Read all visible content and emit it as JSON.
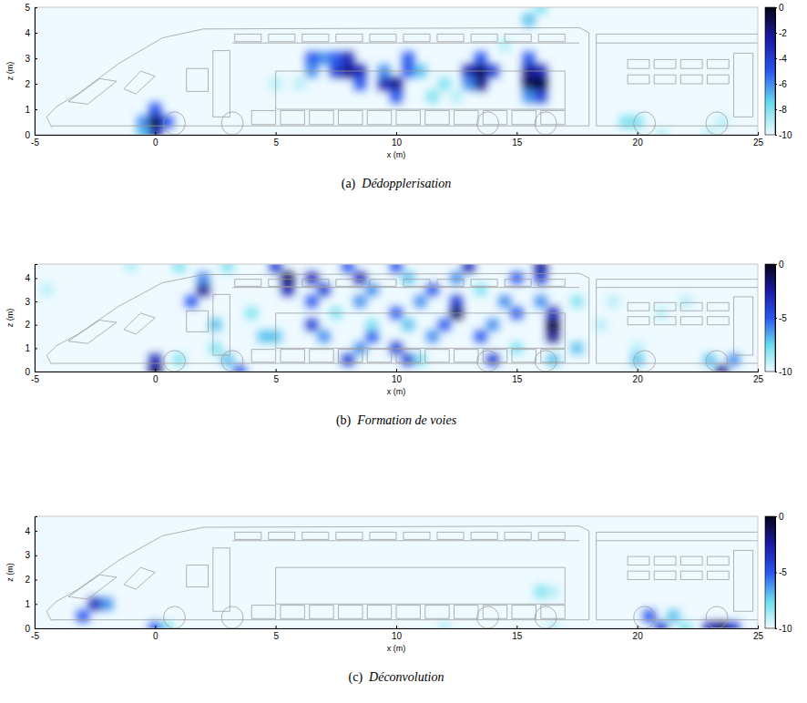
{
  "chart_data": [
    {
      "type": "heatmap",
      "panel": "(a)",
      "title": "Dédopplerisation",
      "xlabel": "x (m)",
      "ylabel": "z (m)",
      "xlim": [
        -5,
        25
      ],
      "xticks": [
        -5,
        0,
        5,
        10,
        15,
        20,
        25
      ],
      "ylim": [
        0,
        5
      ],
      "yticks": [
        0,
        1,
        2,
        3,
        4,
        5
      ],
      "colorbar": {
        "range": [
          -10,
          0
        ],
        "ticks": [
          0,
          -2,
          -4,
          -6,
          -8,
          -10
        ]
      },
      "cells": [
        [
          -0.5,
          0.5,
          -6
        ],
        [
          0,
          0.5,
          0
        ],
        [
          0,
          0,
          -3
        ],
        [
          0,
          1,
          -5
        ],
        [
          0.5,
          0.5,
          -5
        ],
        [
          -0.5,
          0,
          -7
        ],
        [
          6.5,
          2.5,
          -6
        ],
        [
          6.5,
          3,
          -5
        ],
        [
          7,
          3,
          -6
        ],
        [
          7.5,
          2.5,
          -4
        ],
        [
          8,
          2.5,
          -2
        ],
        [
          8,
          3,
          -3
        ],
        [
          8.5,
          2.5,
          -3
        ],
        [
          8.5,
          2,
          -5
        ],
        [
          7.5,
          3,
          -5
        ],
        [
          9.5,
          2,
          -3
        ],
        [
          10,
          2,
          -2
        ],
        [
          10,
          1.5,
          -5
        ],
        [
          9.5,
          2.5,
          -6
        ],
        [
          10.5,
          2.5,
          -5
        ],
        [
          10.5,
          3,
          -5
        ],
        [
          11,
          2.5,
          -7
        ],
        [
          13,
          2.5,
          -3
        ],
        [
          13.5,
          2.5,
          -1
        ],
        [
          13.5,
          2,
          -2
        ],
        [
          14,
          2.5,
          -4
        ],
        [
          13.5,
          3,
          -5
        ],
        [
          13,
          2,
          -6
        ],
        [
          15.5,
          2,
          -1
        ],
        [
          16,
          2,
          0
        ],
        [
          15.5,
          2.5,
          -2
        ],
        [
          16,
          2.5,
          -3
        ],
        [
          16,
          1.5,
          -4
        ],
        [
          15.5,
          3,
          -5
        ],
        [
          15.5,
          1.5,
          -6
        ],
        [
          15.5,
          4.5,
          -7
        ],
        [
          16,
          5,
          -8
        ],
        [
          11.5,
          1.5,
          -8
        ],
        [
          12,
          2,
          -8
        ],
        [
          12.5,
          1.5,
          -9
        ],
        [
          19.5,
          0.5,
          -8
        ],
        [
          20,
          0.5,
          -8
        ],
        [
          21,
          0,
          -9
        ],
        [
          23,
          0,
          -9
        ],
        [
          23.5,
          0.5,
          -9
        ],
        [
          5,
          2,
          -9
        ],
        [
          6,
          2,
          -9
        ],
        [
          14.5,
          3.5,
          -9
        ]
      ]
    },
    {
      "type": "heatmap",
      "panel": "(b)",
      "title": "Formation de voies",
      "xlabel": "x (m)",
      "ylabel": "z (m)",
      "xlim": [
        -5,
        25
      ],
      "xticks": [
        -5,
        0,
        5,
        10,
        15,
        20,
        25
      ],
      "ylim": [
        0,
        4.6
      ],
      "yticks": [
        0,
        1,
        2,
        3,
        4
      ],
      "colorbar": {
        "range": [
          -10,
          0
        ],
        "ticks": [
          0,
          -5,
          -10
        ]
      },
      "cells": [
        [
          0,
          0,
          -1
        ],
        [
          0,
          0.5,
          -3
        ],
        [
          3.5,
          0,
          -5
        ],
        [
          3,
          0.5,
          -7
        ],
        [
          2,
          3.5,
          -2
        ],
        [
          1.5,
          3,
          -5
        ],
        [
          2,
          4,
          -6
        ],
        [
          2.5,
          2,
          -7
        ],
        [
          4.5,
          1.5,
          -7
        ],
        [
          4,
          2.5,
          -8
        ],
        [
          5,
          4.5,
          -4
        ],
        [
          5.5,
          4,
          -1
        ],
        [
          5.5,
          3.5,
          -3
        ],
        [
          6.5,
          4,
          -3
        ],
        [
          6.5,
          3,
          -5
        ],
        [
          7,
          3.5,
          -4
        ],
        [
          5,
          1.5,
          -7
        ],
        [
          6.5,
          2,
          -4
        ],
        [
          7,
          1.5,
          -6
        ],
        [
          8,
          4.5,
          -5
        ],
        [
          8.5,
          4,
          -3
        ],
        [
          8.5,
          3,
          -6
        ],
        [
          9,
          3.5,
          -6
        ],
        [
          10,
          4.5,
          -5
        ],
        [
          10.5,
          4,
          -7
        ],
        [
          8,
          0.5,
          -4
        ],
        [
          8.5,
          1,
          -6
        ],
        [
          9,
          1.5,
          -5
        ],
        [
          10,
          1,
          -4
        ],
        [
          10.5,
          0.5,
          -4
        ],
        [
          10,
          2.5,
          -5
        ],
        [
          10.5,
          2,
          -7
        ],
        [
          11,
          3,
          -6
        ],
        [
          11.5,
          3.5,
          -5
        ],
        [
          11.5,
          1.5,
          -6
        ],
        [
          12,
          2,
          -5
        ],
        [
          12.5,
          2.5,
          -1
        ],
        [
          12.5,
          3,
          -4
        ],
        [
          13,
          4.5,
          -3
        ],
        [
          12.5,
          4,
          -6
        ],
        [
          13.5,
          1.5,
          -5
        ],
        [
          14,
          2,
          -6
        ],
        [
          14,
          0.5,
          -4
        ],
        [
          14.5,
          3,
          -6
        ],
        [
          15,
          2.5,
          -5
        ],
        [
          15,
          4,
          -5
        ],
        [
          16,
          4.5,
          -2
        ],
        [
          16,
          4,
          -4
        ],
        [
          16.5,
          2,
          0
        ],
        [
          16.5,
          1.5,
          -2
        ],
        [
          16.5,
          2.5,
          -3
        ],
        [
          16,
          3,
          -6
        ],
        [
          16.5,
          0.5,
          -7
        ],
        [
          17.5,
          3,
          -8
        ],
        [
          17.5,
          1,
          -7
        ],
        [
          18.5,
          2,
          -9
        ],
        [
          19,
          3,
          -9
        ],
        [
          20,
          1,
          -9
        ],
        [
          20,
          0.5,
          -7
        ],
        [
          21,
          2.5,
          -9
        ],
        [
          22,
          3,
          -9
        ],
        [
          23.5,
          0,
          -2
        ],
        [
          23,
          0.5,
          -7
        ],
        [
          24,
          0.5,
          -6
        ],
        [
          -4.5,
          3.5,
          -9
        ],
        [
          -1,
          4.5,
          -9
        ],
        [
          1,
          4.5,
          -8
        ],
        [
          3,
          4.5,
          -8
        ],
        [
          1,
          0.5,
          -8
        ],
        [
          2.5,
          1,
          -8
        ],
        [
          7.5,
          2.5,
          -8
        ],
        [
          9,
          2,
          -8
        ],
        [
          13.5,
          3.5,
          -8
        ],
        [
          11,
          0.5,
          -8
        ],
        [
          15,
          1,
          -8
        ]
      ]
    },
    {
      "type": "heatmap",
      "panel": "(c)",
      "title": "Déconvolution",
      "xlabel": "x (m)",
      "ylabel": "z (m)",
      "xlim": [
        -5,
        25
      ],
      "xticks": [
        -5,
        0,
        5,
        10,
        15,
        20,
        25
      ],
      "ylim": [
        0,
        4.6
      ],
      "yticks": [
        0,
        1,
        2,
        3,
        4
      ],
      "colorbar": {
        "range": [
          -10,
          0
        ],
        "ticks": [
          0,
          -5,
          -10
        ]
      },
      "cells": [
        [
          -2.5,
          1,
          -3
        ],
        [
          -3,
          0.5,
          -5
        ],
        [
          -2,
          1,
          -6
        ],
        [
          0,
          0,
          -5
        ],
        [
          0.5,
          0,
          -8
        ],
        [
          16,
          1.5,
          -8
        ],
        [
          16.5,
          1.5,
          -9
        ],
        [
          12,
          0,
          -9
        ],
        [
          20.5,
          0.5,
          -5
        ],
        [
          21,
          0,
          -4
        ],
        [
          21.5,
          0.5,
          -7
        ],
        [
          22,
          0,
          -8
        ],
        [
          23.5,
          0,
          -1
        ],
        [
          23,
          0,
          -3
        ],
        [
          24,
          0,
          -4
        ],
        [
          16.5,
          0,
          -9
        ]
      ]
    }
  ]
}
